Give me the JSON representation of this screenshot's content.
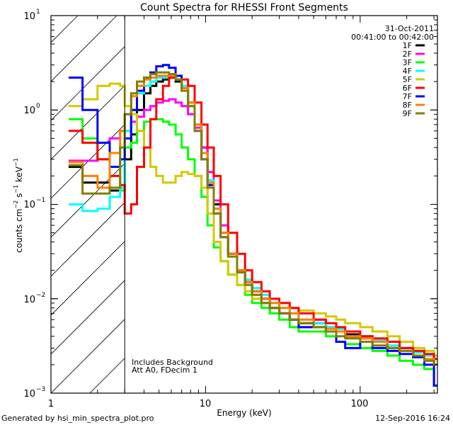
{
  "chart_data": {
    "type": "line",
    "title": "Count Spectra for RHESSI Front Segments",
    "xlabel": "Energy (keV)",
    "ylabel": "counts cm^-2 s^-1 keV^-1",
    "xscale": "log",
    "yscale": "log",
    "xlim": [
      1,
      316
    ],
    "ylim": [
      0.001,
      10
    ],
    "x_tick_labels": [
      {
        "value": 1,
        "label": "1"
      },
      {
        "value": 10,
        "label": "10"
      },
      {
        "value": 100,
        "label": "100"
      }
    ],
    "y_tick_labels": [
      {
        "value": 10,
        "base": "10",
        "exp": "1"
      },
      {
        "value": 1,
        "base": "10",
        "exp": "0"
      },
      {
        "value": 0.1,
        "base": "10",
        "exp": "−1"
      },
      {
        "value": 0.01,
        "base": "10",
        "exp": "−2"
      },
      {
        "value": 0.001,
        "base": "10",
        "exp": "−3"
      }
    ],
    "excluded_region": {
      "from": 1,
      "to": 3,
      "style": "hatched"
    },
    "legend_position": "top-right",
    "annotations": {
      "date": "31-Oct-2011",
      "time_range": "00:41:00 to 00:42:00",
      "note_line1": "Includes Background",
      "note_line2": "Att A0, FDecim 1"
    },
    "series": [
      {
        "name": "1F",
        "color": "#000000",
        "x": [
          1.3,
          1.6,
          2.0,
          2.4,
          2.8,
          3.0,
          3.3,
          3.6,
          4.0,
          4.4,
          4.8,
          5.3,
          5.8,
          6.4,
          7.0,
          7.7,
          8.5,
          9.4,
          10.3,
          11.3,
          12.5,
          14,
          16,
          18,
          20,
          23,
          26,
          30,
          35,
          40,
          50,
          60,
          70,
          80,
          100,
          120,
          150,
          180,
          220,
          260,
          300
        ],
        "y": [
          0.25,
          0.17,
          0.17,
          0.14,
          0.15,
          0.3,
          0.55,
          1.0,
          1.5,
          1.8,
          2.0,
          2.1,
          2.2,
          2.0,
          1.7,
          1.2,
          0.7,
          0.4,
          0.22,
          0.1,
          0.05,
          0.03,
          0.02,
          0.015,
          0.012,
          0.01,
          0.008,
          0.007,
          0.006,
          0.0055,
          0.0055,
          0.005,
          0.0045,
          0.0042,
          0.004,
          0.0035,
          0.003,
          0.003,
          0.0025,
          0.0025,
          0.002
        ]
      },
      {
        "name": "2F",
        "color": "#ff00ff",
        "x": [
          1.3,
          1.6,
          2.0,
          2.4,
          2.8,
          3.0,
          3.3,
          3.6,
          4.0,
          4.4,
          4.8,
          5.3,
          5.8,
          6.4,
          7.0,
          7.7,
          8.5,
          9.4,
          10.3,
          11.3,
          12.5,
          14,
          16,
          18,
          20,
          23,
          26,
          30,
          35,
          40,
          50,
          60,
          70,
          80,
          100,
          120,
          150,
          180,
          220,
          260,
          300
        ],
        "y": [
          0.29,
          0.29,
          0.45,
          0.5,
          0.6,
          0.6,
          0.75,
          0.85,
          1.0,
          1.1,
          1.2,
          1.25,
          1.3,
          1.2,
          1.1,
          0.9,
          0.65,
          0.4,
          0.22,
          0.11,
          0.06,
          0.03,
          0.02,
          0.015,
          0.011,
          0.009,
          0.008,
          0.007,
          0.006,
          0.005,
          0.006,
          0.005,
          0.0045,
          0.004,
          0.0038,
          0.0035,
          0.003,
          0.003,
          0.0025,
          0.0025,
          0.002
        ]
      },
      {
        "name": "3F",
        "color": "#00ff00",
        "x": [
          1.3,
          1.6,
          2.0,
          2.4,
          2.8,
          3.0,
          3.3,
          3.6,
          4.0,
          4.4,
          4.8,
          5.3,
          5.8,
          6.4,
          7.0,
          7.7,
          8.5,
          9.4,
          10.3,
          11.3,
          12.5,
          14,
          16,
          18,
          20,
          23,
          26,
          30,
          35,
          40,
          50,
          60,
          70,
          80,
          100,
          120,
          150,
          180,
          220,
          260,
          300
        ],
        "y": [
          0.8,
          0.5,
          0.3,
          0.15,
          0.14,
          0.4,
          0.45,
          0.6,
          0.75,
          0.8,
          0.8,
          0.75,
          0.7,
          0.55,
          0.4,
          0.3,
          0.2,
          0.12,
          0.06,
          0.035,
          0.025,
          0.018,
          0.014,
          0.011,
          0.009,
          0.008,
          0.007,
          0.006,
          0.005,
          0.0045,
          0.0045,
          0.004,
          0.0035,
          0.0033,
          0.003,
          0.0028,
          0.0025,
          0.0022,
          0.002,
          0.0018,
          0.0012
        ]
      },
      {
        "name": "4F",
        "color": "#00ffff",
        "x": [
          1.3,
          1.6,
          2.0,
          2.4,
          2.8,
          3.0,
          3.3,
          3.6,
          4.0,
          4.4,
          4.8,
          5.3,
          5.8,
          6.4,
          7.0,
          7.7,
          8.5,
          9.4,
          10.3,
          11.3,
          12.5,
          14,
          16,
          18,
          20,
          23,
          26,
          30,
          35,
          40,
          50,
          60,
          70,
          80,
          100,
          120,
          150,
          180,
          220,
          260,
          300
        ],
        "y": [
          0.1,
          0.085,
          0.09,
          0.12,
          0.15,
          0.6,
          1.0,
          1.5,
          1.8,
          2.0,
          2.2,
          2.2,
          2.3,
          2.1,
          1.8,
          1.2,
          0.7,
          0.35,
          0.18,
          0.09,
          0.05,
          0.03,
          0.02,
          0.016,
          0.013,
          0.011,
          0.009,
          0.008,
          0.007,
          0.006,
          0.0055,
          0.005,
          0.0048,
          0.0045,
          0.004,
          0.0036,
          0.0032,
          0.003,
          0.0027,
          0.0025,
          0.002
        ]
      },
      {
        "name": "5F",
        "color": "#d4c800",
        "x": [
          1.3,
          1.6,
          2.0,
          2.4,
          2.8,
          3.0,
          3.3,
          3.6,
          4.0,
          4.4,
          4.8,
          5.3,
          5.8,
          6.4,
          7.0,
          7.7,
          8.5,
          9.4,
          10.3,
          11.3,
          12.5,
          14,
          16,
          18,
          20,
          23,
          26,
          30,
          35,
          40,
          50,
          60,
          70,
          80,
          100,
          120,
          150,
          180,
          220,
          260,
          300
        ],
        "y": [
          1.1,
          1.3,
          1.8,
          1.9,
          1.8,
          1.1,
          0.9,
          0.6,
          0.4,
          0.25,
          0.2,
          0.17,
          0.17,
          0.2,
          0.22,
          0.21,
          0.2,
          0.15,
          0.08,
          0.04,
          0.025,
          0.018,
          0.014,
          0.012,
          0.01,
          0.009,
          0.008,
          0.008,
          0.008,
          0.0075,
          0.007,
          0.0065,
          0.006,
          0.0055,
          0.005,
          0.0045,
          0.004,
          0.0035,
          0.003,
          0.0028,
          0.0025
        ]
      },
      {
        "name": "6F",
        "color": "#ff0000",
        "x": [
          1.3,
          1.6,
          2.0,
          2.4,
          2.8,
          3.0,
          3.3,
          3.6,
          4.0,
          4.4,
          4.8,
          5.3,
          5.8,
          6.4,
          7.0,
          7.7,
          8.5,
          9.4,
          10.3,
          11.3,
          12.5,
          14,
          16,
          18,
          20,
          23,
          26,
          30,
          35,
          40,
          50,
          60,
          70,
          80,
          100,
          120,
          150,
          180,
          220,
          260,
          300
        ],
        "y": [
          0.6,
          0.45,
          0.3,
          0.2,
          0.16,
          0.08,
          0.1,
          0.25,
          0.4,
          0.8,
          1.3,
          1.8,
          2.2,
          2.3,
          2.1,
          1.8,
          1.2,
          0.7,
          0.4,
          0.2,
          0.1,
          0.05,
          0.03,
          0.02,
          0.015,
          0.012,
          0.01,
          0.009,
          0.008,
          0.007,
          0.006,
          0.0055,
          0.005,
          0.0045,
          0.004,
          0.0038,
          0.0035,
          0.003,
          0.0028,
          0.0026,
          0.0023
        ]
      },
      {
        "name": "7F",
        "color": "#0000ff",
        "x": [
          1.3,
          1.6,
          2.0,
          2.4,
          2.8,
          3.0,
          3.3,
          3.6,
          4.0,
          4.4,
          4.8,
          5.3,
          5.8,
          6.4,
          7.0,
          7.7,
          8.5,
          9.4,
          10.3,
          11.3,
          12.5,
          14,
          16,
          18,
          20,
          23,
          26,
          30,
          35,
          40,
          50,
          60,
          70,
          80,
          100,
          120,
          150,
          180,
          220,
          260,
          300
        ],
        "y": [
          2.2,
          1.0,
          0.45,
          0.25,
          0.3,
          0.5,
          1.0,
          1.6,
          2.2,
          2.5,
          2.9,
          3.0,
          2.8,
          2.3,
          1.7,
          1.1,
          0.6,
          0.3,
          0.16,
          0.08,
          0.045,
          0.03,
          0.02,
          0.015,
          0.012,
          0.01,
          0.008,
          0.007,
          0.006,
          0.005,
          0.005,
          0.0045,
          0.0035,
          0.003,
          0.0035,
          0.003,
          0.0028,
          0.0026,
          0.0024,
          0.002,
          0.0012
        ]
      },
      {
        "name": "8F",
        "color": "#ff8000",
        "x": [
          1.3,
          1.6,
          2.0,
          2.4,
          2.8,
          3.0,
          3.3,
          3.6,
          4.0,
          4.4,
          4.8,
          5.3,
          5.8,
          6.4,
          7.0,
          7.7,
          8.5,
          9.4,
          10.3,
          11.3,
          12.5,
          14,
          16,
          18,
          20,
          23,
          26,
          30,
          35,
          40,
          50,
          60,
          70,
          80,
          100,
          120,
          150,
          180,
          220,
          260,
          300
        ],
        "y": [
          0.28,
          0.2,
          0.15,
          0.35,
          0.6,
          0.9,
          1.4,
          1.8,
          2.1,
          2.2,
          2.3,
          2.3,
          2.3,
          2.1,
          1.7,
          1.2,
          0.7,
          0.35,
          0.17,
          0.09,
          0.05,
          0.03,
          0.02,
          0.015,
          0.012,
          0.01,
          0.009,
          0.008,
          0.007,
          0.006,
          0.005,
          0.0048,
          0.0045,
          0.004,
          0.0038,
          0.0035,
          0.003,
          0.0028,
          0.0025,
          0.0023,
          0.002
        ]
      },
      {
        "name": "9F",
        "color": "#808000",
        "x": [
          1.3,
          1.6,
          2.0,
          2.4,
          2.8,
          3.0,
          3.3,
          3.6,
          4.0,
          4.4,
          4.8,
          5.3,
          5.8,
          6.4,
          7.0,
          7.7,
          8.5,
          9.4,
          10.3,
          11.3,
          12.5,
          14,
          16,
          18,
          20,
          23,
          26,
          30,
          35,
          40,
          50,
          60,
          70,
          80,
          100,
          120,
          150,
          180,
          220,
          260,
          300
        ],
        "y": [
          0.26,
          0.13,
          0.13,
          0.15,
          0.4,
          0.9,
          1.5,
          2.0,
          2.2,
          2.4,
          2.5,
          2.5,
          2.4,
          2.1,
          1.6,
          1.1,
          0.6,
          0.3,
          0.15,
          0.08,
          0.045,
          0.028,
          0.019,
          0.014,
          0.011,
          0.009,
          0.008,
          0.007,
          0.006,
          0.0055,
          0.005,
          0.0045,
          0.004,
          0.0038,
          0.0035,
          0.0032,
          0.003,
          0.0028,
          0.0025,
          0.0022,
          0.002
        ]
      }
    ]
  },
  "footer": {
    "generated_by": "Generated by hsi_min_spectra_plot.pro",
    "timestamp": "12-Sep-2016 16:24"
  }
}
